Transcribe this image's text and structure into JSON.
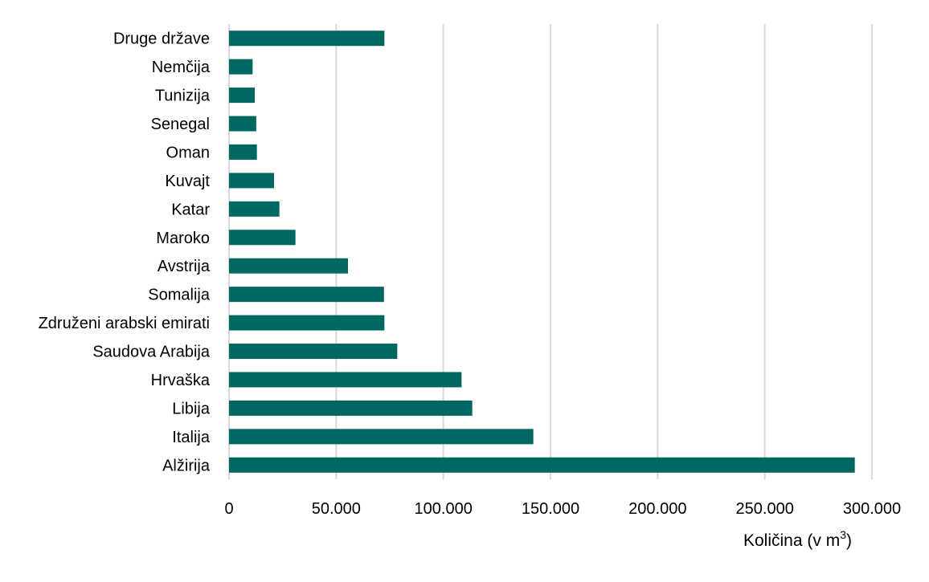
{
  "chart_data": {
    "type": "bar",
    "orientation": "horizontal",
    "title": "",
    "xlabel": "Količina (v m",
    "xlabel_sup": "3",
    "xlabel_end": ")",
    "ylabel": "",
    "xlim": [
      0,
      300000
    ],
    "grid": true,
    "bar_color": "#006861",
    "grid_color": "#d9d9d9",
    "xticks": [
      0,
      50000,
      100000,
      150000,
      200000,
      250000,
      300000
    ],
    "xtick_labels": [
      "0",
      "50.000",
      "100.000",
      "150.000",
      "200.000",
      "250.000",
      "300.000"
    ],
    "categories": [
      "Druge države",
      "Nemčija",
      "Tunizija",
      "Senegal",
      "Oman",
      "Kuvajt",
      "Katar",
      "Maroko",
      "Avstrija",
      "Somalija",
      "Združeni arabski emirati",
      "Saudova Arabija",
      "Hrvaška",
      "Libija",
      "Italija",
      "Alžirija"
    ],
    "values": [
      72500,
      11000,
      12000,
      12700,
      13000,
      21000,
      23500,
      31000,
      55500,
      72300,
      72500,
      78500,
      108500,
      113500,
      142000,
      292000
    ]
  }
}
